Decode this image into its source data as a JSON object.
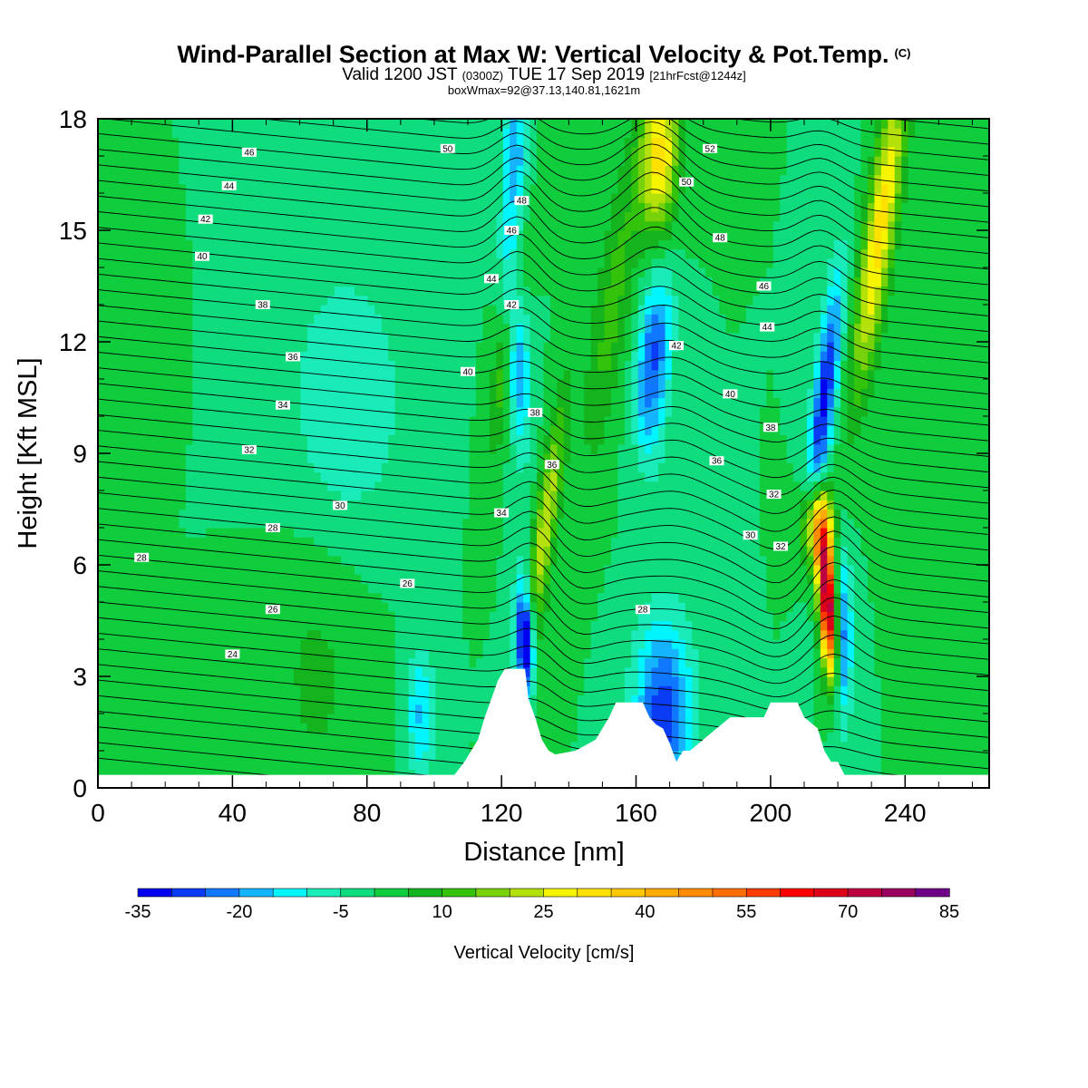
{
  "title": {
    "main": "Wind-Parallel Section at Max W: Vertical Velocity & Pot.Temp.",
    "copyright": "(C)",
    "valid_prefix": "Valid 1200 JST",
    "valid_utc": "(0300Z)",
    "valid_date": "TUE 17 Sep 2019",
    "forecast": "[21hrFcst@1244z]",
    "boxwmax": "boxWmax=92@37.13,140.81,1621m"
  },
  "chart_data": {
    "type": "heatmap",
    "xlabel": "Distance [nm]",
    "ylabel": "Height [Kft MSL]",
    "xlim": [
      0,
      265
    ],
    "ylim": [
      0,
      18
    ],
    "xticks": [
      0,
      40,
      80,
      120,
      160,
      200,
      240
    ],
    "yticks": [
      0,
      3,
      6,
      9,
      12,
      15,
      18
    ],
    "colorbar": {
      "label": "Vertical Velocity [cm/s]",
      "ticks": [
        -35,
        -20,
        -5,
        10,
        25,
        40,
        55,
        70,
        85
      ],
      "min": -35,
      "max": 85,
      "step": 5,
      "colors": [
        "#0000f0",
        "#0a3cf5",
        "#0f78ff",
        "#14b4ff",
        "#00f5ff",
        "#19ebb9",
        "#0fdc7d",
        "#0fcd3c",
        "#14b41e",
        "#32c30a",
        "#78d20a",
        "#b4e10a",
        "#f5f500",
        "#ffe100",
        "#ffc800",
        "#ffaa00",
        "#ff8c00",
        "#ff6e00",
        "#ff3c00",
        "#ff0000",
        "#dc0019",
        "#be0041",
        "#96005f",
        "#6e0087"
      ]
    },
    "terrain_kft": [
      [
        0,
        0.35
      ],
      [
        106,
        0.35
      ],
      [
        109,
        0.7
      ],
      [
        111,
        1.0
      ],
      [
        113,
        1.3
      ],
      [
        115,
        1.9
      ],
      [
        117,
        2.4
      ],
      [
        119,
        2.9
      ],
      [
        121,
        3.2
      ],
      [
        127,
        3.2
      ],
      [
        128,
        2.4
      ],
      [
        130,
        1.9
      ],
      [
        132,
        1.3
      ],
      [
        134,
        1.0
      ],
      [
        136,
        0.9
      ],
      [
        142,
        1.0
      ],
      [
        148,
        1.3
      ],
      [
        152,
        1.9
      ],
      [
        154,
        2.3
      ],
      [
        162,
        2.3
      ],
      [
        164,
        1.9
      ],
      [
        166,
        1.7
      ],
      [
        168,
        1.6
      ],
      [
        170,
        1.2
      ],
      [
        172,
        0.7
      ],
      [
        174,
        1.0
      ],
      [
        176,
        1.0
      ],
      [
        180,
        1.3
      ],
      [
        184,
        1.6
      ],
      [
        188,
        1.9
      ],
      [
        198,
        1.9
      ],
      [
        200,
        2.3
      ],
      [
        208,
        2.3
      ],
      [
        210,
        1.9
      ],
      [
        214,
        1.6
      ],
      [
        216,
        1.0
      ],
      [
        218,
        0.7
      ],
      [
        220,
        0.7
      ],
      [
        222,
        0.35
      ],
      [
        265,
        0.35
      ]
    ],
    "theta_labels_c": [
      "24",
      "26",
      "26",
      "28",
      "28",
      "28",
      "30",
      "30",
      "32",
      "32",
      "32",
      "34",
      "34",
      "36",
      "36",
      "36",
      "38",
      "38",
      "38",
      "40",
      "40",
      "40",
      "42",
      "42",
      "42",
      "44",
      "44",
      "44",
      "46",
      "46",
      "46",
      "48",
      "48",
      "50",
      "50",
      "52"
    ],
    "w_features": [
      {
        "x": 217,
        "z": 5.0,
        "w": 85
      },
      {
        "x": 127,
        "z": 4.0,
        "w": -35
      },
      {
        "x": 168,
        "z": 1.6,
        "w": -30
      },
      {
        "x": 214,
        "z": 10.0,
        "w": -30
      },
      {
        "x": 165,
        "z": 11.5,
        "w": -25
      },
      {
        "x": 128,
        "z": 11.5,
        "w": -25
      },
      {
        "x": 167,
        "z": 17.0,
        "w": 30
      },
      {
        "x": 222,
        "z": 14.0,
        "w": 35
      },
      {
        "x": 130,
        "z": 8.0,
        "w": 25
      },
      {
        "x": 74,
        "z": 10.0,
        "w": -5
      },
      {
        "x": 95,
        "z": 2.0,
        "w": -10
      }
    ]
  }
}
